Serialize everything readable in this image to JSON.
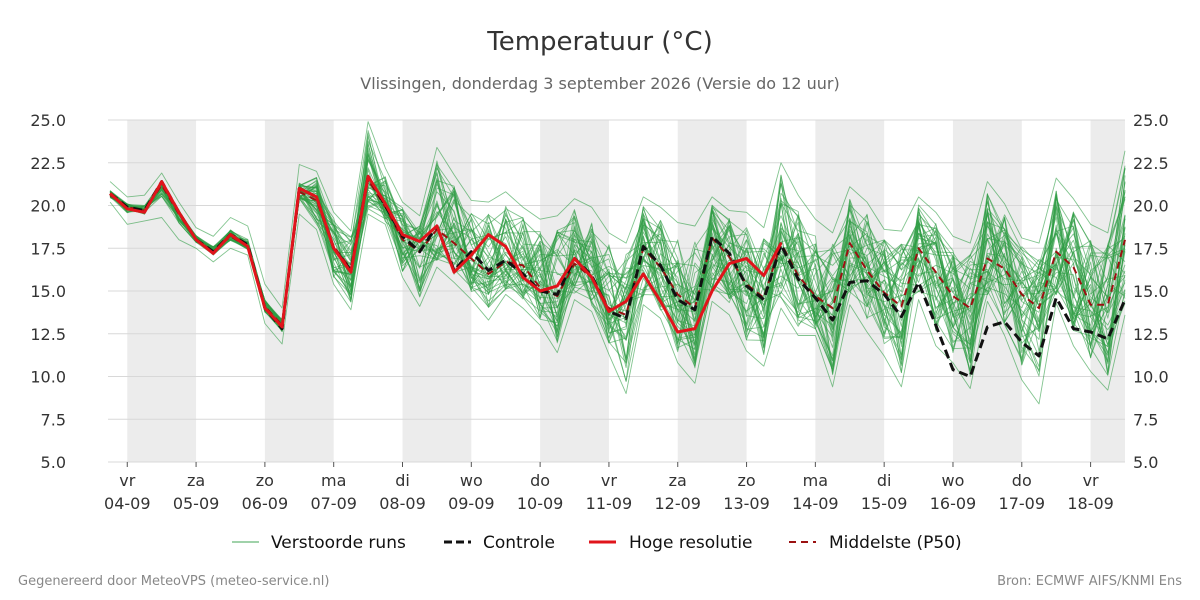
{
  "chart_data": {
    "type": "line",
    "title": "Temperatuur (°C)",
    "subtitle": "Vlissingen, donderdag  3 september 2026 (Versie do 12 uur)",
    "ylim": [
      5,
      25
    ],
    "yticks": [
      "5.0",
      "7.5",
      "10.0",
      "12.5",
      "15.0",
      "17.5",
      "20.0",
      "22.5",
      "25.0"
    ],
    "ytick_values": [
      5,
      7.5,
      10,
      12.5,
      15,
      17.5,
      20,
      22.5,
      25
    ],
    "xlim": [
      3.8,
      18.5
    ],
    "x_days": [
      4,
      5,
      6,
      7,
      8,
      9,
      10,
      11,
      12,
      13,
      14,
      15,
      16,
      17,
      18
    ],
    "x_weekdays": [
      "vr",
      "za",
      "zo",
      "ma",
      "di",
      "wo",
      "do",
      "vr",
      "za",
      "zo",
      "ma",
      "di",
      "wo",
      "do",
      "vr"
    ],
    "x_dates": [
      "04-09",
      "05-09",
      "06-09",
      "07-09",
      "08-09",
      "09-09",
      "10-09",
      "11-09",
      "12-09",
      "13-09",
      "14-09",
      "15-09",
      "16-09",
      "17-09",
      "18-09"
    ],
    "weekend_shading": [
      [
        4,
        5
      ],
      [
        6,
        7
      ],
      [
        8,
        9
      ],
      [
        10,
        11
      ],
      [
        12,
        13
      ],
      [
        14,
        15
      ],
      [
        16,
        17
      ],
      [
        18,
        18.5
      ]
    ],
    "grid": true,
    "legend": {
      "placement": "bottom"
    },
    "series": [
      {
        "name": "Controle",
        "color": "#111111",
        "style": "dashed",
        "x": [
          3.75,
          4.0,
          4.25,
          4.5,
          4.75,
          5.0,
          5.25,
          5.5,
          5.75,
          6.0,
          6.25,
          6.5,
          6.75,
          7.0,
          7.25,
          7.5,
          7.75,
          8.0,
          8.25,
          8.5,
          8.75,
          9.0,
          9.25,
          9.5,
          9.75,
          10.0,
          10.25,
          10.5,
          10.75,
          11.0,
          11.25,
          11.5,
          11.75,
          12.0,
          12.25,
          12.5,
          12.75,
          13.0,
          13.25,
          13.5,
          13.75,
          14.0,
          14.25,
          14.5,
          14.75,
          15.0,
          15.25,
          15.5,
          15.75,
          16.0,
          16.25,
          16.5,
          16.75,
          17.0,
          17.25,
          17.5,
          17.75,
          18.0,
          18.25,
          18.5
        ],
        "values": [
          20.7,
          19.9,
          19.7,
          21.4,
          19.6,
          18.0,
          17.3,
          18.3,
          17.7,
          14.0,
          12.8,
          21.0,
          20.5,
          17.5,
          16.2,
          21.7,
          20.0,
          18.2,
          17.3,
          18.8,
          16.2,
          17.3,
          16.2,
          16.8,
          16.0,
          15.0,
          14.8,
          16.9,
          15.9,
          13.8,
          13.4,
          17.6,
          16.5,
          14.5,
          13.9,
          18.2,
          17.2,
          15.3,
          14.5,
          17.7,
          15.7,
          14.6,
          13.3,
          15.5,
          15.6,
          14.8,
          13.5,
          15.5,
          13.0,
          10.4,
          10.0,
          12.9,
          13.2,
          12.0,
          11.2,
          14.6,
          12.8,
          12.6,
          12.2,
          14.5
        ]
      },
      {
        "name": "Hoge resolutie",
        "color": "#e0141b",
        "style": "solid",
        "x": [
          3.75,
          4.0,
          4.25,
          4.5,
          4.75,
          5.0,
          5.25,
          5.5,
          5.75,
          6.0,
          6.25,
          6.5,
          6.75,
          7.0,
          7.25,
          7.5,
          7.75,
          8.0,
          8.25,
          8.5,
          8.75,
          9.0,
          9.25,
          9.5,
          9.75,
          10.0,
          10.25,
          10.5,
          10.75,
          11.0,
          11.25,
          11.5,
          11.75,
          12.0,
          12.25,
          12.5,
          12.75,
          13.0,
          13.25,
          13.5
        ],
        "values": [
          20.7,
          19.8,
          19.6,
          21.4,
          19.6,
          18.0,
          17.2,
          18.3,
          17.6,
          14.0,
          12.9,
          21.0,
          20.5,
          17.5,
          16.1,
          21.7,
          20.1,
          18.3,
          17.9,
          18.8,
          16.1,
          17.1,
          18.3,
          17.6,
          15.8,
          15.0,
          15.3,
          16.9,
          15.8,
          13.8,
          14.4,
          16.0,
          14.4,
          12.6,
          12.8,
          15.0,
          16.6,
          16.9,
          15.9,
          17.8
        ]
      },
      {
        "name": "Middelste (P50)",
        "color": "#9b1111",
        "style": "dashed",
        "x": [
          3.75,
          4.0,
          4.25,
          4.5,
          4.75,
          5.0,
          5.25,
          5.5,
          5.75,
          6.0,
          6.25,
          6.5,
          6.75,
          7.0,
          7.25,
          7.5,
          7.75,
          8.0,
          8.25,
          8.5,
          8.75,
          9.0,
          9.25,
          9.5,
          9.75,
          10.0,
          10.25,
          10.5,
          10.75,
          11.0,
          11.25,
          11.5,
          11.75,
          12.0,
          12.25,
          12.5,
          12.75,
          13.0,
          13.25,
          13.5,
          13.75,
          14.0,
          14.25,
          14.5,
          14.75,
          15.0,
          15.25,
          15.5,
          15.75,
          16.0,
          16.25,
          16.5,
          16.75,
          17.0,
          17.25,
          17.5,
          17.75,
          18.0,
          18.25,
          18.5
        ],
        "values": [
          20.6,
          19.9,
          19.7,
          21.2,
          19.5,
          18.0,
          17.3,
          18.2,
          17.6,
          14.1,
          13.0,
          20.8,
          20.3,
          17.6,
          16.3,
          21.5,
          19.9,
          18.0,
          17.3,
          18.6,
          17.8,
          16.9,
          16.0,
          16.7,
          16.5,
          15.2,
          14.7,
          16.6,
          15.8,
          14.0,
          13.6,
          17.5,
          16.4,
          14.8,
          14.0,
          18.1,
          17.0,
          15.4,
          14.6,
          17.8,
          15.9,
          14.7,
          14.0,
          17.8,
          16.2,
          14.9,
          14.1,
          17.5,
          16.1,
          14.7,
          14.0,
          16.9,
          16.3,
          14.8,
          14.0,
          17.3,
          16.4,
          14.2,
          14.2,
          18.0
        ]
      }
    ],
    "ensemble": {
      "name": "Verstoorde runs",
      "color": "#2e9c44",
      "runs": 50,
      "x": [
        3.75,
        4.0,
        4.25,
        4.5,
        4.75,
        5.0,
        5.25,
        5.5,
        5.75,
        6.0,
        6.25,
        6.5,
        6.75,
        7.0,
        7.25,
        7.5,
        7.75,
        8.0,
        8.25,
        8.5,
        8.75,
        9.0,
        9.25,
        9.5,
        9.75,
        10.0,
        10.25,
        10.5,
        10.75,
        11.0,
        11.25,
        11.5,
        11.75,
        12.0,
        12.25,
        12.5,
        12.75,
        13.0,
        13.25,
        13.5,
        13.75,
        14.0,
        14.25,
        14.5,
        14.75,
        15.0,
        15.25,
        15.5,
        15.75,
        16.0,
        16.25,
        16.5,
        16.75,
        17.0,
        17.25,
        17.5,
        17.75,
        18.0,
        18.25,
        18.5
      ],
      "median": [
        20.6,
        19.9,
        19.7,
        21.2,
        19.5,
        18.0,
        17.3,
        18.2,
        17.6,
        14.1,
        13.0,
        20.8,
        20.3,
        17.6,
        16.3,
        21.5,
        19.9,
        18.0,
        17.3,
        18.6,
        17.8,
        16.9,
        16.0,
        16.7,
        16.5,
        15.2,
        14.7,
        16.6,
        15.8,
        14.0,
        13.6,
        17.5,
        16.4,
        14.8,
        14.0,
        18.1,
        17.0,
        15.4,
        14.6,
        17.8,
        15.9,
        14.7,
        14.0,
        17.8,
        16.2,
        14.9,
        14.1,
        17.5,
        16.1,
        14.7,
        14.0,
        16.9,
        16.3,
        14.8,
        14.0,
        17.3,
        16.4,
        14.2,
        14.2,
        18.0
      ],
      "min": [
        20.2,
        18.9,
        19.1,
        19.3,
        18.0,
        17.5,
        16.7,
        17.5,
        17.1,
        13.1,
        11.9,
        19.5,
        18.6,
        15.4,
        13.9,
        19.5,
        18.9,
        15.8,
        14.1,
        16.4,
        15.5,
        14.5,
        13.3,
        14.8,
        14.0,
        13.0,
        11.4,
        14.5,
        13.8,
        11.3,
        9.0,
        14.2,
        13.4,
        10.8,
        9.6,
        14.4,
        13.6,
        11.5,
        10.6,
        14.0,
        12.4,
        12.4,
        9.4,
        14.2,
        12.6,
        11.2,
        9.4,
        14.5,
        11.8,
        10.8,
        9.3,
        14.4,
        12.4,
        9.8,
        8.4,
        14.3,
        11.8,
        10.3,
        9.2,
        13.6
      ],
      "max": [
        21.4,
        20.5,
        20.6,
        21.9,
        20.2,
        18.7,
        18.2,
        19.3,
        18.8,
        15.4,
        14.0,
        22.4,
        22.0,
        19.6,
        18.5,
        24.9,
        22.2,
        20.2,
        19.4,
        23.4,
        21.8,
        20.3,
        20.2,
        20.8,
        19.9,
        19.2,
        19.4,
        20.4,
        19.9,
        18.4,
        17.8,
        20.5,
        19.9,
        19.0,
        18.8,
        20.5,
        19.7,
        19.6,
        18.7,
        22.5,
        20.6,
        19.2,
        18.4,
        21.1,
        20.2,
        18.6,
        18.5,
        20.5,
        19.6,
        18.2,
        17.8,
        21.4,
        20.1,
        18.1,
        17.8,
        21.6,
        20.4,
        18.9,
        18.4,
        23.2
      ]
    }
  },
  "legend": {
    "items": [
      {
        "label": "Verstoorde runs"
      },
      {
        "label": "Controle"
      },
      {
        "label": "Hoge resolutie"
      },
      {
        "label": "Middelste (P50)"
      }
    ]
  },
  "footer": {
    "left": "Gegenereerd door MeteoVPS (meteo-service.nl)",
    "right": "Bron: ECMWF AIFS/KNMI Ens"
  }
}
